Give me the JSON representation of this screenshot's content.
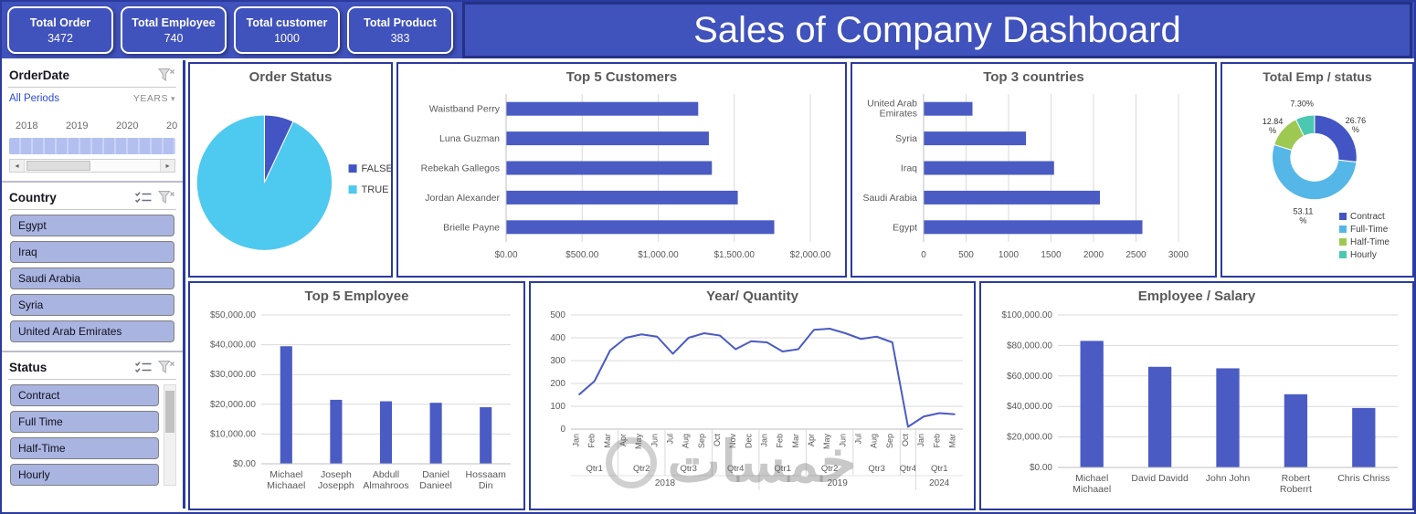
{
  "header": {
    "title": "Sales of Company Dashboard",
    "kpis": [
      {
        "label": "Total Order",
        "value": "3472"
      },
      {
        "label": "Total Employee",
        "value": "740"
      },
      {
        "label": "Total customer",
        "value": "1000"
      },
      {
        "label": "Total Product",
        "value": "383"
      }
    ]
  },
  "sidebar": {
    "order_date": {
      "title": "OrderDate",
      "period": "All Periods",
      "granularity": "YEARS",
      "year_labels": [
        "2018",
        "2019",
        "2020",
        "20"
      ]
    },
    "country": {
      "title": "Country",
      "items": [
        "Egypt",
        "Iraq",
        "Saudi Arabia",
        "Syria",
        "United Arab Emirates"
      ]
    },
    "status": {
      "title": "Status",
      "items": [
        "Contract",
        "Full Time",
        "Half-Time",
        "Hourly"
      ]
    }
  },
  "watermark": "خمسات",
  "colors": {
    "accent": "#4a5bc4",
    "panel_border": "#2b3a9e",
    "header_blue": "#4052bc"
  },
  "chart_data": [
    {
      "type": "pie",
      "title": "Order Status",
      "labels": [
        "FALSE",
        "TRUE"
      ],
      "values": [
        7,
        93
      ],
      "colors": [
        "#4355c4",
        "#4ec9ef"
      ],
      "legend_position": "right"
    },
    {
      "type": "bar-horizontal",
      "title": "Top 5 Customers",
      "categories": [
        [
          "Waistband Perry"
        ],
        [
          "Luna Guzman"
        ],
        [
          "Rebekah Gallegos"
        ],
        [
          "Jordan Alexander"
        ],
        [
          "Brielle Payne"
        ]
      ],
      "values": [
        1260,
        1330,
        1350,
        1520,
        1760
      ],
      "xlim": [
        0,
        2000
      ],
      "xtick_labels": [
        "$0.00",
        "$500.00",
        "$1,000.00",
        "$1,500.00",
        "$2,000.00"
      ],
      "xtick_values": [
        0,
        500,
        1000,
        1500,
        2000
      ],
      "color": "#4a5bc4",
      "grid": true
    },
    {
      "type": "bar-horizontal",
      "title": "Top 3 countries",
      "categories": [
        [
          "United Arab",
          "Emirates"
        ],
        [
          "Syria"
        ],
        [
          "Iraq"
        ],
        [
          "Saudi Arabia"
        ],
        [
          "Egypt"
        ]
      ],
      "values": [
        570,
        1200,
        1530,
        2070,
        2570
      ],
      "xlim": [
        0,
        3000
      ],
      "xtick_labels": [
        "0",
        "500",
        "1000",
        "1500",
        "2000",
        "2500",
        "3000"
      ],
      "xtick_values": [
        0,
        500,
        1000,
        1500,
        2000,
        2500,
        3000
      ],
      "color": "#4a5bc4",
      "grid": true
    },
    {
      "type": "donut",
      "title": "Total Emp / status",
      "labels": [
        "Contract",
        "Full-Time",
        "Half-Time",
        "Hourly"
      ],
      "values": [
        26.76,
        53.11,
        12.84,
        7.3
      ],
      "value_labels": [
        "26.76 %",
        "53.11 %",
        "12.84 %",
        "7.30%"
      ],
      "colors": [
        "#4355c4",
        "#55b6e8",
        "#9dc953",
        "#4bc8b2"
      ],
      "legend_position": "bottom-right"
    },
    {
      "type": "bar-vertical",
      "title": "Top 5 Employee",
      "categories": [
        [
          "Michael",
          "Michaael"
        ],
        [
          "Joseph",
          "Josepph"
        ],
        [
          "Abdull",
          "Almahroos"
        ],
        [
          "Daniel",
          "Danieel"
        ],
        [
          "Hossaam",
          "Din"
        ]
      ],
      "values": [
        39500,
        21500,
        21000,
        20500,
        19000
      ],
      "ylim": [
        0,
        50000
      ],
      "ytick_labels": [
        "$0.00",
        "$10,000.00",
        "$20,000.00",
        "$30,000.00",
        "$40,000.00",
        "$50,000.00"
      ],
      "ytick_values": [
        0,
        10000,
        20000,
        30000,
        40000,
        50000
      ],
      "color": "#4a5bc4",
      "grid": true
    },
    {
      "type": "line",
      "title": "Year/  Quantity",
      "x_months": [
        "Jan",
        "Feb",
        "Mar",
        "Apr",
        "May",
        "Jun",
        "Jul",
        "Aug",
        "Sep",
        "Oct",
        "Nov",
        "Dec",
        "Jan",
        "Feb",
        "Mar",
        "Apr",
        "May",
        "Jun",
        "Jul",
        "Aug",
        "Sep",
        "Oct",
        "Jan",
        "Feb",
        "Mar"
      ],
      "quarters": [
        {
          "label": "Qtr1",
          "span": 3
        },
        {
          "label": "Qtr2",
          "span": 3
        },
        {
          "label": "Qtr3",
          "span": 3
        },
        {
          "label": "Qtr4",
          "span": 3
        },
        {
          "label": "Qtr1",
          "span": 3
        },
        {
          "label": "Qtr2",
          "span": 3
        },
        {
          "label": "Qtr3",
          "span": 3
        },
        {
          "label": "Qtr4",
          "span": 1
        },
        {
          "label": "Qtr1",
          "span": 3
        }
      ],
      "years": [
        {
          "label": "2018",
          "span": 12
        },
        {
          "label": "2019",
          "span": 10
        },
        {
          "label": "2024",
          "span": 3
        }
      ],
      "values": [
        150,
        210,
        345,
        400,
        415,
        405,
        330,
        400,
        420,
        410,
        350,
        385,
        380,
        340,
        350,
        435,
        440,
        420,
        395,
        405,
        380,
        10,
        55,
        70,
        65
      ],
      "ylim": [
        0,
        500
      ],
      "ytick_values": [
        0,
        100,
        200,
        300,
        400,
        500
      ],
      "color": "#4a5bc4",
      "grid": true
    },
    {
      "type": "bar-vertical",
      "title": "Employee / Salary",
      "categories": [
        [
          "Michael",
          "Michaael"
        ],
        [
          "David Davidd"
        ],
        [
          "John John"
        ],
        [
          "Robert",
          "Roberrt"
        ],
        [
          "Chris Chriss"
        ]
      ],
      "values": [
        83000,
        66000,
        65000,
        48000,
        39000
      ],
      "ylim": [
        0,
        100000
      ],
      "ytick_labels": [
        "$0.00",
        "$20,000.00",
        "$40,000.00",
        "$60,000.00",
        "$80,000.00",
        "$100,000.00"
      ],
      "ytick_values": [
        0,
        20000,
        40000,
        60000,
        80000,
        100000
      ],
      "color": "#4a5bc4",
      "grid": true
    }
  ]
}
